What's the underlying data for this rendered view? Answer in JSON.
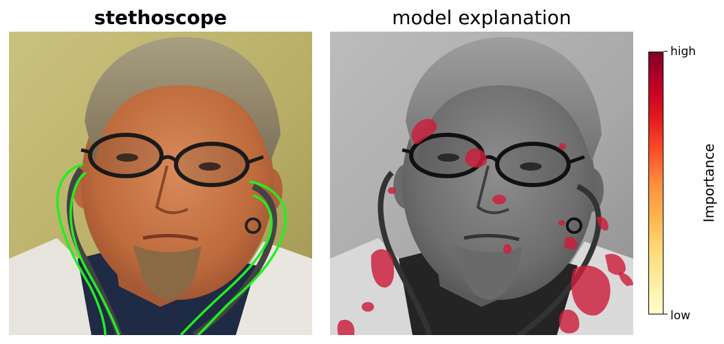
{
  "figure": {
    "left_title": "stethoscope",
    "right_title": "model explanation",
    "colorbar": {
      "label": "Importance",
      "high_label": "high",
      "low_label": "low",
      "colors": [
        "#ffffcc",
        "#ffeda0",
        "#fed976",
        "#feb24c",
        "#fd8d3c",
        "#fc4e2a",
        "#e31a1c",
        "#bd0026",
        "#800026"
      ]
    },
    "outline_color": "#22ee22",
    "highlight_color": "#cc1f3a"
  }
}
